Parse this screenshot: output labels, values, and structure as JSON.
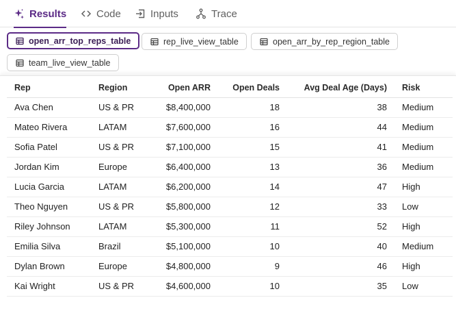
{
  "tabs": [
    {
      "label": "Results",
      "icon": "sparkle-icon",
      "active": true
    },
    {
      "label": "Code",
      "icon": "code-icon",
      "active": false
    },
    {
      "label": "Inputs",
      "icon": "inputs-icon",
      "active": false
    },
    {
      "label": "Trace",
      "icon": "trace-icon",
      "active": false
    }
  ],
  "accent_color": "#5b2a86",
  "tables": [
    {
      "label": "open_arr_top_reps_table",
      "icon": "table-icon",
      "active": true
    },
    {
      "label": "rep_live_view_table",
      "icon": "table-icon",
      "active": false
    },
    {
      "label": "open_arr_by_rep_region_table",
      "icon": "table-icon",
      "active": false
    },
    {
      "label": "team_live_view_table",
      "icon": "table-icon",
      "active": false
    }
  ],
  "grid": {
    "columns": [
      "Rep",
      "Region",
      "Open ARR",
      "Open Deals",
      "Avg Deal Age (Days)",
      "Risk"
    ],
    "rows": [
      [
        "Ava Chen",
        "US & PR",
        "$8,400,000",
        "18",
        "38",
        "Medium"
      ],
      [
        "Mateo Rivera",
        "LATAM",
        "$7,600,000",
        "16",
        "44",
        "Medium"
      ],
      [
        "Sofia Patel",
        "US & PR",
        "$7,100,000",
        "15",
        "41",
        "Medium"
      ],
      [
        "Jordan Kim",
        "Europe",
        "$6,400,000",
        "13",
        "36",
        "Medium"
      ],
      [
        "Lucia Garcia",
        "LATAM",
        "$6,200,000",
        "14",
        "47",
        "High"
      ],
      [
        "Theo Nguyen",
        "US & PR",
        "$5,800,000",
        "12",
        "33",
        "Low"
      ],
      [
        "Riley Johnson",
        "LATAM",
        "$5,300,000",
        "11",
        "52",
        "High"
      ],
      [
        "Emilia Silva",
        "Brazil",
        "$5,100,000",
        "10",
        "40",
        "Medium"
      ],
      [
        "Dylan Brown",
        "Europe",
        "$4,800,000",
        "9",
        "46",
        "High"
      ],
      [
        "Kai Wright",
        "US & PR",
        "$4,600,000",
        "10",
        "35",
        "Low"
      ]
    ]
  }
}
